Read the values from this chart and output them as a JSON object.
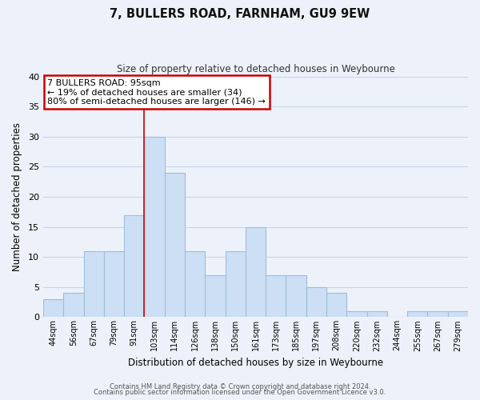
{
  "title": "7, BULLERS ROAD, FARNHAM, GU9 9EW",
  "subtitle": "Size of property relative to detached houses in Weybourne",
  "xlabel": "Distribution of detached houses by size in Weybourne",
  "ylabel": "Number of detached properties",
  "footer_line1": "Contains HM Land Registry data © Crown copyright and database right 2024.",
  "footer_line2": "Contains public sector information licensed under the Open Government Licence v3.0.",
  "bin_labels": [
    "44sqm",
    "56sqm",
    "67sqm",
    "79sqm",
    "91sqm",
    "103sqm",
    "114sqm",
    "126sqm",
    "138sqm",
    "150sqm",
    "161sqm",
    "173sqm",
    "185sqm",
    "197sqm",
    "208sqm",
    "220sqm",
    "232sqm",
    "244sqm",
    "255sqm",
    "267sqm",
    "279sqm"
  ],
  "bar_values": [
    3,
    4,
    11,
    11,
    17,
    30,
    24,
    11,
    7,
    11,
    15,
    7,
    7,
    5,
    4,
    1,
    1,
    0,
    1,
    1,
    1
  ],
  "bar_color": "#ccdff5",
  "bar_edge_color": "#a0bcd8",
  "ylim": [
    0,
    40
  ],
  "yticks": [
    0,
    5,
    10,
    15,
    20,
    25,
    30,
    35,
    40
  ],
  "property_line_x": 4.5,
  "annotation_title": "7 BULLERS ROAD: 95sqm",
  "annotation_line1": "← 19% of detached houses are smaller (34)",
  "annotation_line2": "80% of semi-detached houses are larger (146) →",
  "annotation_box_color": "#ffffff",
  "annotation_border_color": "#cc0000",
  "vline_color": "#cc0000",
  "background_color": "#edf2fa",
  "plot_background_color": "#edf2fa",
  "grid_color": "#c8d4e8"
}
